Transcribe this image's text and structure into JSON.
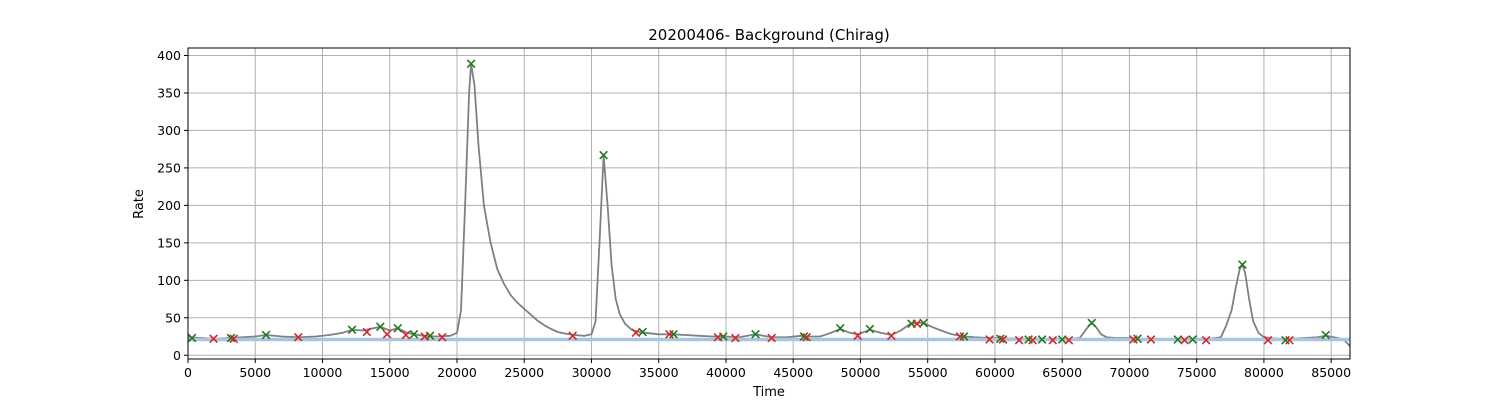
{
  "chart_data": {
    "type": "line",
    "title": "20200406- Background (Chirag)",
    "xlabel": "Time",
    "ylabel": "Rate",
    "xlim": [
      0,
      86400
    ],
    "ylim": [
      -5,
      410
    ],
    "x_ticks": [
      0,
      5000,
      10000,
      15000,
      20000,
      25000,
      30000,
      35000,
      40000,
      45000,
      50000,
      55000,
      60000,
      65000,
      70000,
      75000,
      80000,
      85000
    ],
    "y_ticks": [
      0,
      50,
      100,
      150,
      200,
      250,
      300,
      350,
      400
    ],
    "grid": true,
    "colors": {
      "rate_line": "#808080",
      "background_line": "#a9c6e0",
      "green_marker": "#1f7a1f",
      "red_marker": "#d62728"
    },
    "series": [
      {
        "style": "line",
        "color": "rate_line",
        "points": [
          [
            0,
            24
          ],
          [
            1000,
            23
          ],
          [
            2000,
            22
          ],
          [
            3000,
            23
          ],
          [
            4000,
            24
          ],
          [
            5000,
            25
          ],
          [
            5800,
            27
          ],
          [
            7000,
            25
          ],
          [
            8200,
            24
          ],
          [
            9500,
            25
          ],
          [
            10500,
            27
          ],
          [
            11500,
            30
          ],
          [
            12200,
            34
          ],
          [
            13000,
            33
          ],
          [
            14300,
            38
          ],
          [
            15000,
            33
          ],
          [
            15600,
            36
          ],
          [
            16300,
            30
          ],
          [
            16800,
            28
          ],
          [
            17500,
            26
          ],
          [
            18500,
            25
          ],
          [
            19500,
            26
          ],
          [
            20000,
            30
          ],
          [
            20300,
            60
          ],
          [
            20600,
            200
          ],
          [
            20900,
            350
          ],
          [
            21050,
            389
          ],
          [
            21300,
            360
          ],
          [
            21600,
            280
          ],
          [
            22000,
            200
          ],
          [
            22500,
            150
          ],
          [
            23000,
            115
          ],
          [
            23500,
            95
          ],
          [
            24000,
            80
          ],
          [
            24500,
            70
          ],
          [
            25000,
            62
          ],
          [
            25500,
            54
          ],
          [
            26000,
            46
          ],
          [
            26500,
            40
          ],
          [
            27000,
            35
          ],
          [
            27500,
            31
          ],
          [
            28000,
            29
          ],
          [
            28700,
            27
          ],
          [
            29500,
            26
          ],
          [
            30000,
            28
          ],
          [
            30300,
            45
          ],
          [
            30600,
            150
          ],
          [
            30900,
            267
          ],
          [
            31200,
            200
          ],
          [
            31500,
            120
          ],
          [
            31800,
            75
          ],
          [
            32100,
            55
          ],
          [
            32500,
            42
          ],
          [
            33000,
            34
          ],
          [
            33500,
            31
          ],
          [
            34000,
            30
          ],
          [
            35000,
            28
          ],
          [
            36000,
            28
          ],
          [
            37000,
            27
          ],
          [
            38000,
            26
          ],
          [
            39000,
            25
          ],
          [
            40000,
            25
          ],
          [
            41000,
            24
          ],
          [
            42200,
            28
          ],
          [
            43400,
            24
          ],
          [
            44500,
            24
          ],
          [
            45600,
            26
          ],
          [
            46000,
            25
          ],
          [
            47000,
            25
          ],
          [
            47800,
            30
          ],
          [
            48500,
            35
          ],
          [
            49200,
            30
          ],
          [
            49800,
            28
          ],
          [
            50700,
            34
          ],
          [
            51500,
            30
          ],
          [
            52300,
            27
          ],
          [
            53000,
            33
          ],
          [
            53700,
            42
          ],
          [
            54200,
            43
          ],
          [
            54700,
            43
          ],
          [
            55300,
            38
          ],
          [
            56000,
            33
          ],
          [
            56800,
            28
          ],
          [
            57400,
            26
          ],
          [
            57800,
            25
          ],
          [
            58500,
            24
          ],
          [
            59500,
            23
          ],
          [
            60500,
            23
          ],
          [
            61500,
            22
          ],
          [
            62500,
            21
          ],
          [
            63500,
            21
          ],
          [
            64500,
            21
          ],
          [
            65300,
            21
          ],
          [
            65800,
            22
          ],
          [
            66300,
            23
          ],
          [
            66600,
            30
          ],
          [
            67000,
            40
          ],
          [
            67200,
            43
          ],
          [
            67500,
            38
          ],
          [
            67900,
            28
          ],
          [
            68300,
            24
          ],
          [
            69000,
            23
          ],
          [
            70000,
            23
          ],
          [
            71000,
            22
          ],
          [
            72000,
            22
          ],
          [
            73000,
            21
          ],
          [
            74000,
            21
          ],
          [
            75000,
            22
          ],
          [
            76000,
            22
          ],
          [
            76800,
            24
          ],
          [
            77200,
            40
          ],
          [
            77600,
            60
          ],
          [
            77900,
            90
          ],
          [
            78200,
            115
          ],
          [
            78400,
            121
          ],
          [
            78600,
            110
          ],
          [
            78900,
            75
          ],
          [
            79200,
            45
          ],
          [
            79600,
            30
          ],
          [
            80000,
            24
          ],
          [
            81000,
            22
          ],
          [
            82000,
            22
          ],
          [
            83000,
            23
          ],
          [
            84000,
            24
          ],
          [
            84600,
            26
          ],
          [
            85500,
            23
          ],
          [
            86000,
            20
          ],
          [
            86400,
            12
          ]
        ]
      },
      {
        "style": "line",
        "color": "background_line",
        "points": [
          [
            0,
            21
          ],
          [
            86400,
            21
          ]
        ]
      },
      {
        "style": "marker-x",
        "color": "green_marker",
        "points": [
          [
            300,
            23
          ],
          [
            3200,
            23
          ],
          [
            5800,
            27
          ],
          [
            12200,
            34
          ],
          [
            14300,
            38
          ],
          [
            15600,
            36
          ],
          [
            16800,
            28
          ],
          [
            18000,
            26
          ],
          [
            21050,
            389
          ],
          [
            30900,
            267
          ],
          [
            33800,
            31
          ],
          [
            36100,
            28
          ],
          [
            39800,
            25
          ],
          [
            42200,
            28
          ],
          [
            45800,
            25
          ],
          [
            48500,
            36
          ],
          [
            50700,
            35
          ],
          [
            53800,
            42
          ],
          [
            54700,
            43
          ],
          [
            57700,
            25
          ],
          [
            60400,
            22
          ],
          [
            62500,
            21
          ],
          [
            63500,
            21
          ],
          [
            65000,
            21
          ],
          [
            67200,
            43
          ],
          [
            70600,
            22
          ],
          [
            73600,
            21
          ],
          [
            74700,
            21
          ],
          [
            78400,
            121
          ],
          [
            81600,
            20
          ],
          [
            84600,
            27
          ]
        ]
      },
      {
        "style": "marker-x",
        "color": "red_marker",
        "points": [
          [
            1900,
            22
          ],
          [
            3400,
            22
          ],
          [
            8200,
            24
          ],
          [
            13300,
            31
          ],
          [
            14800,
            28
          ],
          [
            16200,
            27
          ],
          [
            17600,
            25
          ],
          [
            18900,
            24
          ],
          [
            28600,
            26
          ],
          [
            33300,
            30
          ],
          [
            35800,
            28
          ],
          [
            39400,
            24
          ],
          [
            40700,
            23
          ],
          [
            43400,
            23
          ],
          [
            46000,
            24
          ],
          [
            49800,
            26
          ],
          [
            52300,
            26
          ],
          [
            54200,
            42
          ],
          [
            57400,
            25
          ],
          [
            59600,
            21
          ],
          [
            60600,
            21
          ],
          [
            61800,
            20
          ],
          [
            62800,
            20
          ],
          [
            64300,
            20
          ],
          [
            65500,
            20
          ],
          [
            70300,
            21
          ],
          [
            71600,
            21
          ],
          [
            74100,
            20
          ],
          [
            75700,
            20
          ],
          [
            80300,
            20
          ],
          [
            81900,
            20
          ]
        ]
      }
    ]
  }
}
